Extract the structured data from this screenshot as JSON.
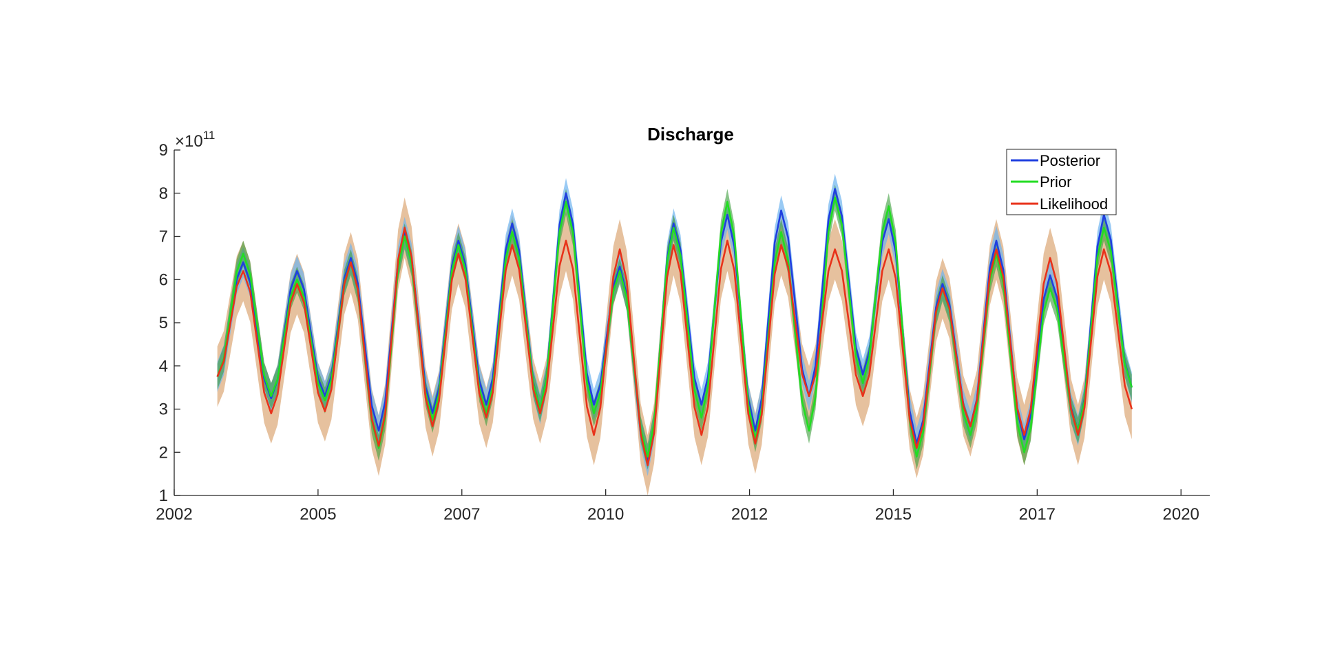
{
  "chart_data": {
    "type": "line",
    "title": "Discharge",
    "xlabel": "",
    "ylabel": "",
    "y_exponent": {
      "times": "×",
      "base": "10",
      "power": "11"
    },
    "xlim": [
      2002,
      2020
    ],
    "ylim": [
      1,
      9
    ],
    "x_ticks": [
      2002,
      2005,
      2007,
      2010,
      2012,
      2015,
      2017,
      2020
    ],
    "x_tick_labels": [
      "2002",
      "2005",
      "2007",
      "2010",
      "2012",
      "2015",
      "2017",
      "2020"
    ],
    "y_ticks": [
      1,
      2,
      3,
      4,
      5,
      6,
      7,
      8,
      9
    ],
    "y_tick_labels": [
      "1",
      "2",
      "3",
      "4",
      "5",
      "6",
      "7",
      "8",
      "9"
    ],
    "grid": false,
    "legend_position": "top-right",
    "colors": {
      "posterior": "#1f3fe0",
      "prior": "#22dd22",
      "likelihood": "#e8321a",
      "posterior_band": "#6eb4f0",
      "prior_band": "#3a9d3a",
      "likelihood_band": "#d9a06a"
    },
    "series": [
      {
        "name": "Posterior",
        "key": "posterior",
        "peaks": [
          6.4,
          6.2,
          6.5,
          7.1,
          6.9,
          7.3,
          8.0,
          6.3,
          7.3,
          7.5,
          7.6,
          8.1,
          7.4,
          5.9,
          6.9,
          6.1,
          7.5
        ],
        "troughs": [
          3.75,
          3.25,
          3.3,
          2.5,
          2.9,
          3.1,
          3.0,
          3.1,
          1.8,
          3.1,
          2.5,
          3.3,
          3.8,
          2.2,
          2.6,
          2.3,
          2.5,
          3.5
        ],
        "band": 0.35
      },
      {
        "name": "Prior",
        "key": "prior",
        "peaks": [
          6.6,
          6.0,
          6.4,
          7.0,
          6.8,
          7.1,
          7.8,
          6.2,
          7.2,
          7.8,
          7.1,
          7.9,
          7.7,
          5.8,
          6.6,
          5.8,
          7.2
        ],
        "troughs": [
          3.75,
          3.3,
          3.2,
          2.1,
          2.75,
          2.9,
          3.0,
          2.9,
          1.9,
          2.8,
          2.3,
          2.5,
          3.6,
          1.9,
          2.4,
          2.0,
          2.5,
          3.5
        ],
        "band": 0.3
      },
      {
        "name": "Likelihood",
        "key": "likelihood",
        "peaks": [
          6.2,
          5.9,
          6.4,
          7.2,
          6.6,
          6.8,
          6.9,
          6.7,
          6.8,
          6.9,
          6.8,
          6.7,
          6.7,
          5.8,
          6.7,
          6.5,
          6.7
        ],
        "troughs": [
          3.75,
          2.9,
          2.95,
          2.15,
          2.6,
          2.8,
          2.9,
          2.4,
          1.7,
          2.4,
          2.2,
          3.3,
          3.3,
          2.1,
          2.6,
          2.4,
          2.4,
          3.0
        ],
        "band": 0.7
      }
    ]
  }
}
